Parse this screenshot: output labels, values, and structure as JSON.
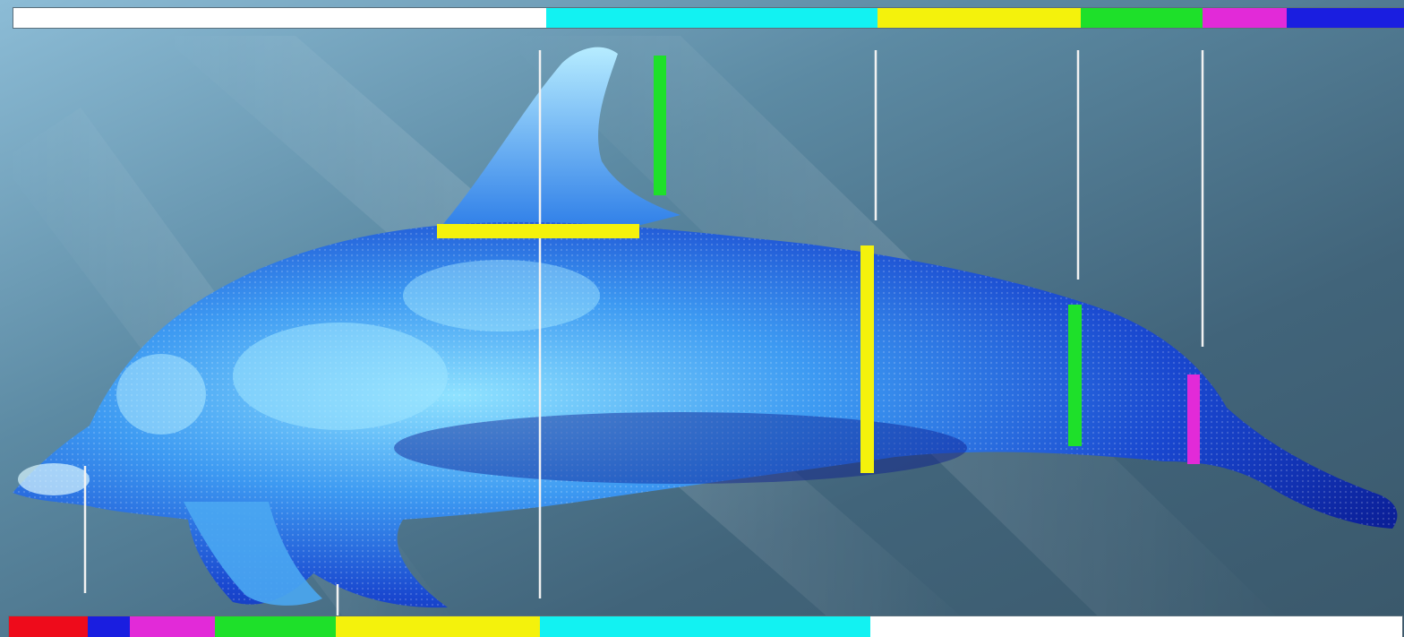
{
  "colors": {
    "background_dark": "#3c5a6d",
    "background_light": "#8fbfda",
    "body_dark": "#0a1f9a",
    "body_mid": "#1d5fe0",
    "body_light": "#79d6ff",
    "marker_white": "#f4f4f4",
    "red": "#ee0b1b",
    "blue": "#1a1ee0",
    "magenta": "#e22ad8",
    "green": "#1ee02a",
    "yellow": "#f4f20c",
    "cyan": "#12f2f2",
    "white": "#ffffff"
  },
  "top_scale": [
    "white",
    "cyan",
    "yellow",
    "green",
    "magenta",
    "blue"
  ],
  "bottom_scale": [
    "red",
    "blue",
    "magenta",
    "green",
    "yellow",
    "cyan",
    "white"
  ],
  "measurement_bars": [
    "green",
    "yellow",
    "yellow",
    "green",
    "magenta"
  ],
  "icons": {
    "subject": "dolphin-silhouette-icon"
  }
}
